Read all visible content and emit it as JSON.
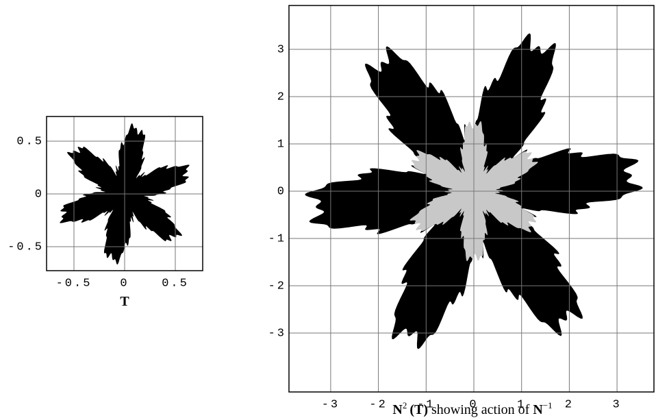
{
  "panels": [
    {
      "xticks": [
        -0.5,
        0,
        0.5
      ],
      "yticks": [
        0.5,
        0,
        -0.5
      ],
      "caption": "T"
    },
    {
      "xticks": [
        -3,
        -2,
        -1,
        0,
        1,
        2,
        3
      ],
      "yticks": [
        3,
        2,
        1,
        0,
        -1,
        -2,
        -3
      ],
      "caption": [
        "N",
        "2",
        "(T)",
        "showing action of",
        "N",
        "−1"
      ]
    }
  ]
}
